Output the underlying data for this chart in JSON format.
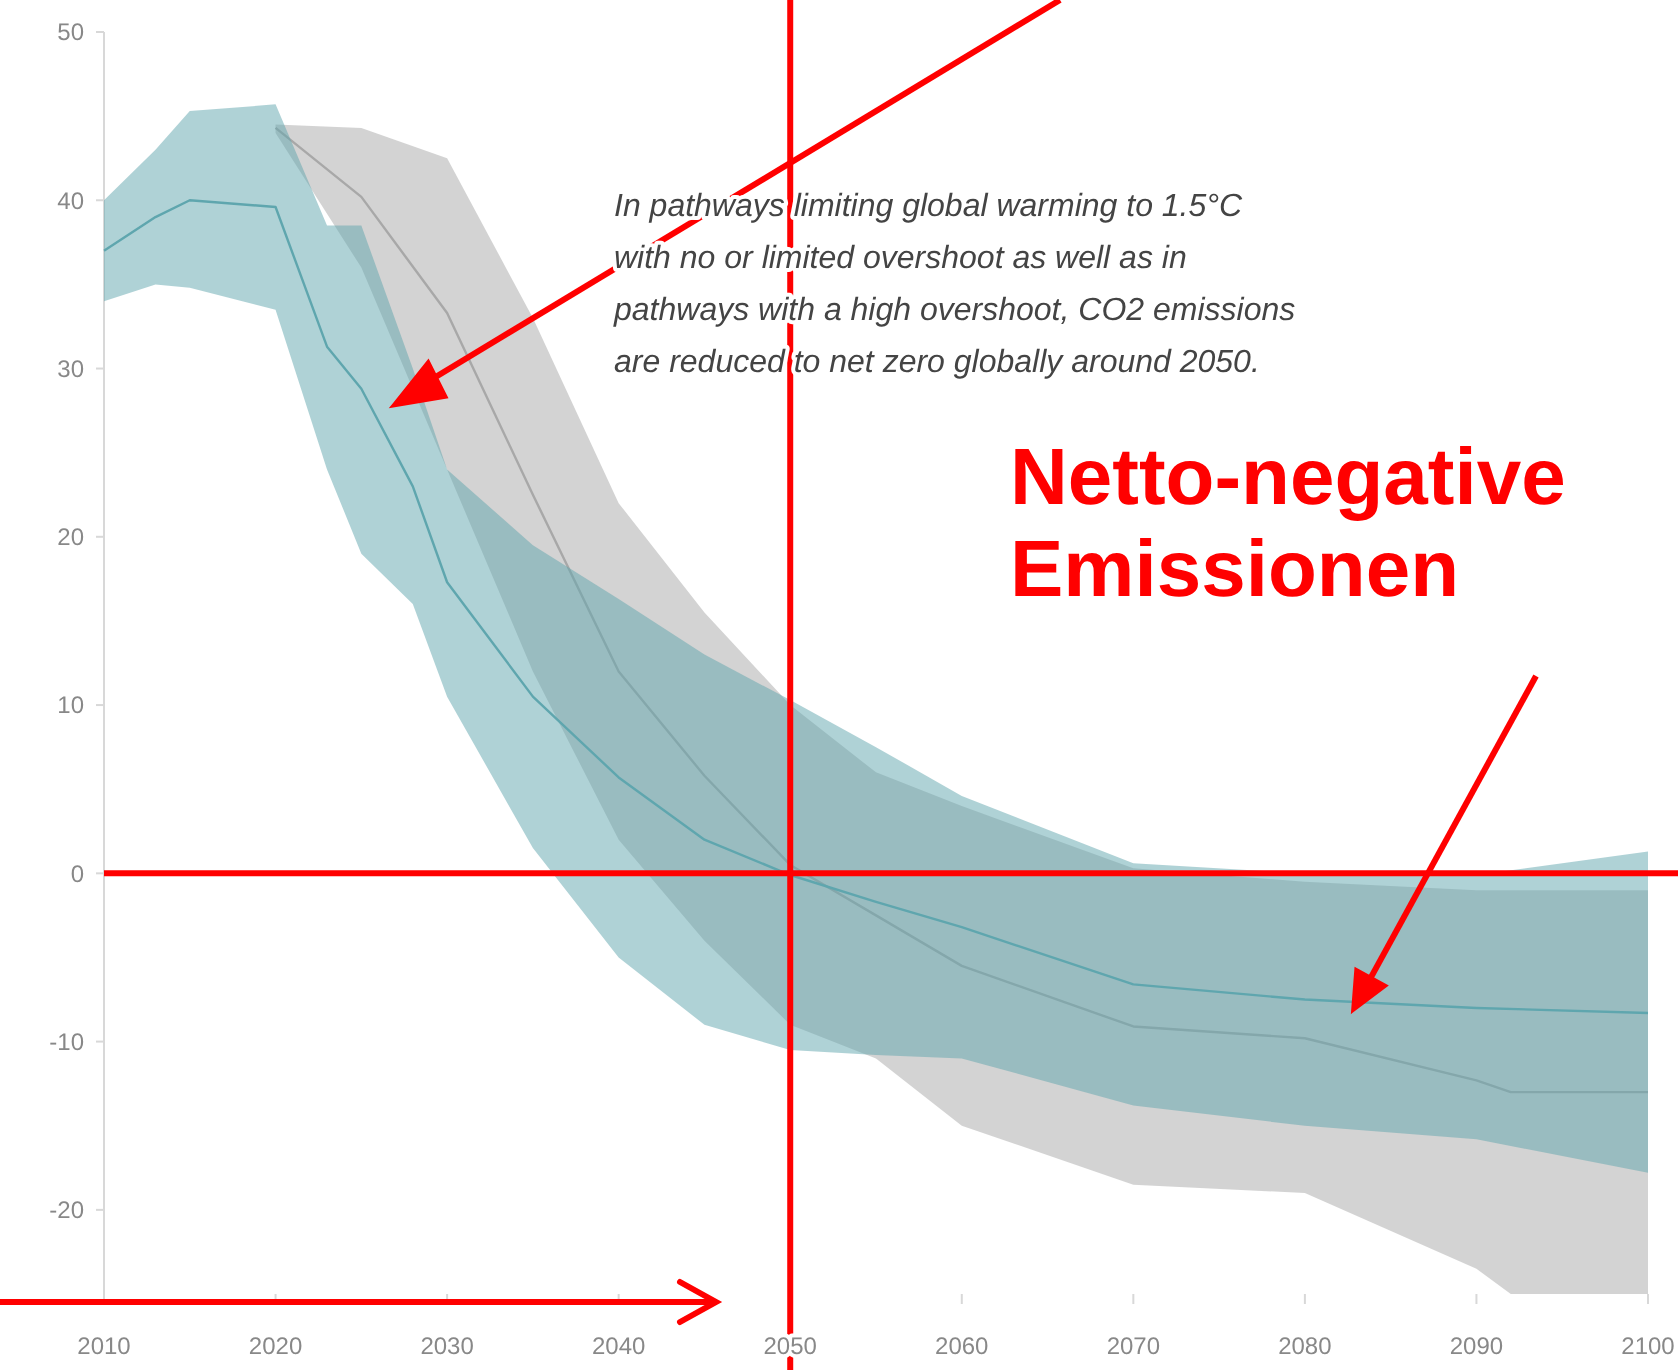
{
  "chart_data": {
    "type": "line",
    "annotations": [
      "In pathways limiting global warming to 1.5°C with no or limited overshoot as well as in pathways with a high overshoot, CO2 emissions are reduced to net zero globally around 2050.",
      "Netto-negative Emissionen"
    ],
    "series": [
      {
        "color": "#a8a8a8",
        "x": [
          2020,
          2025,
          2030,
          2035,
          2040,
          2045,
          2050,
          2055,
          2060,
          2070,
          2080,
          2090,
          2092,
          2100
        ],
        "values": [
          44.3,
          40.2,
          33.3,
          22.5,
          12,
          5.8,
          0.5,
          -2.5,
          -5.5,
          -9.1,
          -9.8,
          -12.3,
          -13,
          -13
        ],
        "upper": [
          44.5,
          44.3,
          42.5,
          33,
          22,
          15.5,
          10,
          6,
          4,
          0.3,
          -0.5,
          -1,
          -1,
          -1
        ],
        "lower": [
          44,
          36,
          24,
          12,
          2,
          -4,
          -9,
          -11,
          -15,
          -18.5,
          -19,
          -23.5,
          -25,
          -25
        ]
      },
      {
        "color": "#5fa6ae",
        "x": [
          2010,
          2013,
          2015,
          2020,
          2023,
          2025,
          2028,
          2030,
          2035,
          2040,
          2045,
          2050,
          2055,
          2060,
          2070,
          2080,
          2090,
          2100
        ],
        "values": [
          37,
          39,
          40,
          39.6,
          31.3,
          28.8,
          23,
          17.3,
          10.5,
          5.7,
          2,
          -0.1,
          -1.7,
          -3.2,
          -6.6,
          -7.5,
          -8,
          -8.3
        ],
        "upper": [
          40,
          43,
          45.3,
          45.7,
          38.5,
          38.5,
          30,
          24,
          19.5,
          16.3,
          13,
          10.3,
          7.5,
          4.6,
          0.6,
          0,
          -0.1,
          1.3
        ],
        "lower": [
          34,
          35,
          34.8,
          33.5,
          24,
          19,
          16,
          10.5,
          1.5,
          -5,
          -9,
          -10.5,
          -10.8,
          -11,
          -13.8,
          -15,
          -15.8,
          -17.8
        ]
      }
    ],
    "xlim": [
      2010,
      2100
    ],
    "xticks": [
      2010,
      2020,
      2030,
      2040,
      2050,
      2060,
      2070,
      2080,
      2090,
      2100
    ],
    "ylim": [
      -25,
      50
    ],
    "yticks": [
      50,
      40,
      30,
      20,
      10,
      0,
      -10,
      -20
    ],
    "ref_lines": [
      {
        "axis": "y",
        "value": 0,
        "color": "#ff0000"
      },
      {
        "axis": "x",
        "value": 2050,
        "color": "#ff0000"
      }
    ],
    "grid": false
  }
}
